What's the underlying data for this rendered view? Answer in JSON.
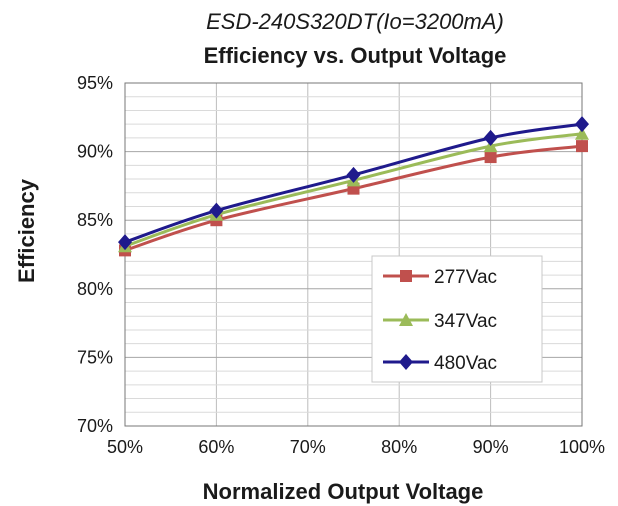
{
  "chart_data": {
    "type": "line",
    "subtitle": "ESD-240S320DT(Io=3200mA)",
    "title": "Efficiency vs. Output Voltage",
    "xlabel": "Normalized Output Voltage",
    "ylabel": "Efficiency",
    "x": [
      50,
      60,
      75,
      90,
      100
    ],
    "x_ticks": [
      50,
      60,
      70,
      80,
      90,
      100
    ],
    "x_tick_labels": [
      "50%",
      "60%",
      "70%",
      "80%",
      "90%",
      "100%"
    ],
    "xlim": [
      50,
      100
    ],
    "ylim": [
      70,
      95
    ],
    "y_ticks": [
      70,
      75,
      80,
      85,
      90,
      95
    ],
    "y_tick_labels": [
      "70%",
      "75%",
      "80%",
      "85%",
      "90%",
      "95%"
    ],
    "grid": true,
    "legend_position": "bottom-right",
    "series": [
      {
        "name": "277Vac",
        "marker": "square",
        "color": "#c0504d",
        "values": [
          82.8,
          85.0,
          87.3,
          89.6,
          90.4
        ]
      },
      {
        "name": "347Vac",
        "marker": "triangle",
        "color": "#9bbb59",
        "values": [
          83.1,
          85.4,
          87.9,
          90.4,
          91.3
        ]
      },
      {
        "name": "480Vac",
        "marker": "diamond",
        "color": "#1f1a8c",
        "values": [
          83.4,
          85.7,
          88.3,
          91.0,
          92.0
        ]
      }
    ]
  }
}
